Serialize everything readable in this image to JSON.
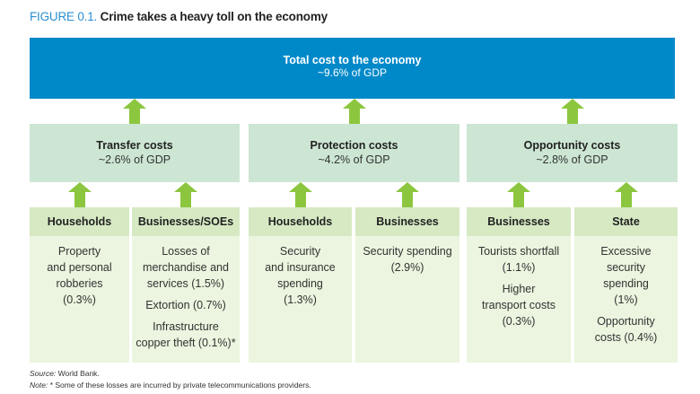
{
  "figure": {
    "label": "FIGURE 0.1.",
    "title": "Crime takes a heavy toll on the economy"
  },
  "total": {
    "title": "Total cost to the economy",
    "value": "~9.6% of GDP"
  },
  "categories": [
    {
      "title": "Transfer costs",
      "value": "~2.6% of GDP",
      "groups": [
        {
          "head": "Households",
          "items": [
            "Property\nand personal\nrobberies\n(0.3%)"
          ]
        },
        {
          "head": "Businesses/SOEs",
          "items": [
            "Losses of\nmerchandise and\nservices (1.5%)",
            "Extortion (0.7%)",
            "Infrastructure\ncopper theft (0.1%)*"
          ]
        }
      ]
    },
    {
      "title": "Protection costs",
      "value": "~4.2% of GDP",
      "groups": [
        {
          "head": "Households",
          "items": [
            "Security\nand insurance\nspending\n(1.3%)"
          ]
        },
        {
          "head": "Businesses",
          "items": [
            "Security spending\n(2.9%)"
          ]
        }
      ]
    },
    {
      "title": "Opportunity costs",
      "value": "~2.8% of GDP",
      "groups": [
        {
          "head": "Businesses",
          "items": [
            "Tourists shortfall\n(1.1%)",
            "Higher\ntransport costs\n(0.3%)"
          ]
        },
        {
          "head": "State",
          "items": [
            "Excessive\nsecurity\nspending\n(1%)",
            "Opportunity\ncosts (0.4%)"
          ]
        }
      ]
    }
  ],
  "footer": {
    "source_label": "Source:",
    "source": " World Bank.",
    "note_label": "Note:",
    "note": " * Some of these losses are incurred by private telecommunications providers."
  },
  "colors": {
    "total": "#0089c9",
    "category": "#cce6d3",
    "group_head": "#d6e9c3",
    "group_body": "#ebf5df",
    "arrow": "#8cc63f",
    "figure_label": "#2a8fd0"
  }
}
